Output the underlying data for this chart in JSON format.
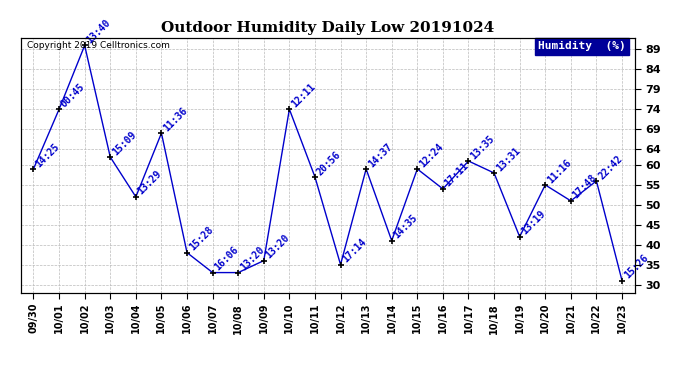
{
  "title": "Outdoor Humidity Daily Low 20191024",
  "copyright": "Copyright 2019 Celltronics.com",
  "legend_label": "Humidity  (%)",
  "dates": [
    "09/30",
    "10/01",
    "10/02",
    "10/03",
    "10/04",
    "10/05",
    "10/06",
    "10/07",
    "10/08",
    "10/09",
    "10/10",
    "10/11",
    "10/12",
    "10/13",
    "10/14",
    "10/15",
    "10/16",
    "10/17",
    "10/18",
    "10/19",
    "10/20",
    "10/21",
    "10/22",
    "10/23"
  ],
  "values": [
    59,
    74,
    90,
    62,
    52,
    68,
    38,
    33,
    33,
    36,
    74,
    57,
    35,
    59,
    41,
    59,
    54,
    61,
    58,
    42,
    55,
    51,
    56,
    31
  ],
  "time_labels": [
    "14:25",
    "00:45",
    "13:40",
    "15:09",
    "13:29",
    "11:36",
    "15:28",
    "16:06",
    "13:20",
    "13:20",
    "12:11",
    "20:56",
    "17:14",
    "14:37",
    "14:35",
    "12:24",
    "17:11",
    "13:35",
    "13:31",
    "13:19",
    "11:16",
    "17:48",
    "22:42",
    "15:26"
  ],
  "yticks": [
    30,
    35,
    40,
    45,
    50,
    55,
    60,
    64,
    69,
    74,
    79,
    84,
    89
  ],
  "ylim": [
    28,
    92
  ],
  "line_color": "#0000CC",
  "marker_color": "#000000",
  "label_color": "#0000CC",
  "background_color": "#ffffff",
  "grid_color": "#bbbbbb",
  "title_fontsize": 11,
  "label_fontsize": 7,
  "tick_fontsize": 8,
  "legend_bg": "#000099",
  "legend_fg": "#ffffff"
}
